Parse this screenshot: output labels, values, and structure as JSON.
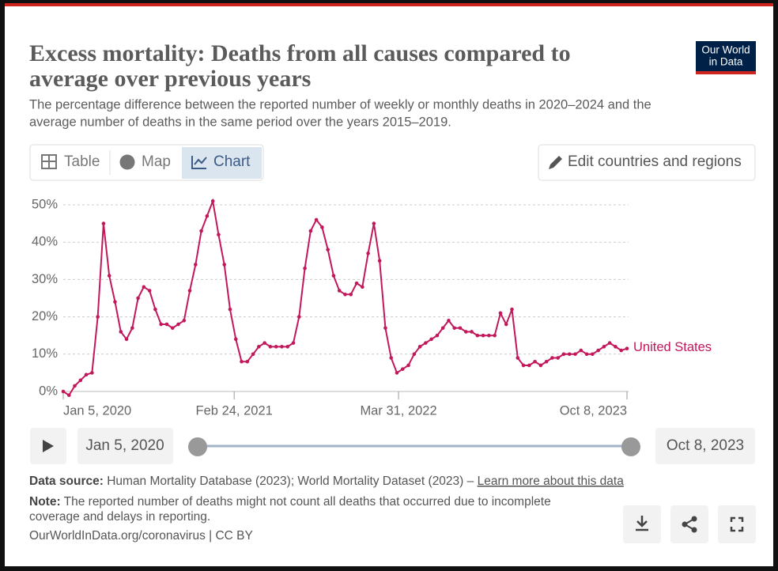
{
  "header": {
    "title_lines": [
      "Excess mortality: Deaths from all causes compared to",
      "average over previous years"
    ],
    "subtitle_lines": [
      "The percentage difference between the reported number of weekly or monthly deaths in 2020–2024 and the",
      "average number of deaths in the same period over the years 2015–2019."
    ]
  },
  "logo": {
    "lines": [
      "Our World",
      "in Data"
    ]
  },
  "tabs": [
    "Table",
    "Map",
    "Chart"
  ],
  "edit_button": "Edit countries and regions",
  "timeline": {
    "start": "Jan 5, 2020",
    "end": "Oct 8, 2023"
  },
  "footer": {
    "source_label": "Data source:",
    "source": " Human Mortality Database (2023); World Mortality Dataset (2023) – ",
    "learn_more": "Learn more about this data",
    "note_label": "Note:",
    "note_lines": [
      " The reported number of deaths might not count all deaths that occurred due to incomplete",
      "coverage and delays in reporting."
    ],
    "url": "OurWorldInData.org/coronavirus | CC BY"
  },
  "chart_data": {
    "type": "line",
    "x": [
      "2020-01-05",
      "2020-01-19",
      "2020-02-02",
      "2020-02-16",
      "2020-03-01",
      "2020-03-15",
      "2020-03-29",
      "2020-04-12",
      "2020-04-26",
      "2020-05-10",
      "2020-05-24",
      "2020-06-07",
      "2020-06-21",
      "2020-07-05",
      "2020-07-19",
      "2020-08-02",
      "2020-08-16",
      "2020-08-30",
      "2020-09-13",
      "2020-09-27",
      "2020-10-11",
      "2020-10-25",
      "2020-11-08",
      "2020-11-22",
      "2020-12-06",
      "2020-12-20",
      "2021-01-03",
      "2021-01-17",
      "2021-01-31",
      "2021-02-14",
      "2021-02-28",
      "2021-03-14",
      "2021-03-28",
      "2021-04-11",
      "2021-04-25",
      "2021-05-09",
      "2021-05-23",
      "2021-06-06",
      "2021-06-20",
      "2021-07-04",
      "2021-07-18",
      "2021-08-01",
      "2021-08-15",
      "2021-08-29",
      "2021-09-12",
      "2021-09-26",
      "2021-10-10",
      "2021-10-24",
      "2021-11-07",
      "2021-11-21",
      "2021-12-05",
      "2021-12-19",
      "2022-01-02",
      "2022-01-16",
      "2022-01-30",
      "2022-02-13",
      "2022-02-27",
      "2022-03-13",
      "2022-03-27",
      "2022-04-10",
      "2022-04-24",
      "2022-05-08",
      "2022-05-22",
      "2022-06-05",
      "2022-06-19",
      "2022-07-03",
      "2022-07-17",
      "2022-07-31",
      "2022-08-14",
      "2022-08-28",
      "2022-09-11",
      "2022-09-25",
      "2022-10-09",
      "2022-10-23",
      "2022-11-06",
      "2022-11-20",
      "2022-12-04",
      "2022-12-18",
      "2023-01-01",
      "2023-01-15",
      "2023-01-29",
      "2023-02-12",
      "2023-02-26",
      "2023-03-12",
      "2023-03-26",
      "2023-04-09",
      "2023-04-23",
      "2023-05-07",
      "2023-05-21",
      "2023-06-04",
      "2023-06-18",
      "2023-07-02",
      "2023-07-16",
      "2023-07-30",
      "2023-08-13",
      "2023-08-27",
      "2023-09-10",
      "2023-09-24",
      "2023-10-08"
    ],
    "series": [
      {
        "name": "United States",
        "color": "#c2185b",
        "values": [
          0,
          -1,
          1.5,
          3,
          4.5,
          5,
          20,
          45,
          31,
          24,
          16,
          14,
          17,
          25,
          28,
          27,
          22,
          18,
          18,
          17,
          18,
          19,
          27,
          34,
          43,
          47,
          51,
          42,
          34,
          22,
          14,
          8,
          8,
          10,
          12,
          13,
          12,
          12,
          12,
          12,
          13,
          20,
          33,
          43,
          46,
          44,
          38,
          31,
          27,
          26,
          26,
          29,
          28,
          37,
          45,
          35,
          17,
          9,
          5,
          6,
          7,
          10,
          12,
          13,
          14,
          15,
          17,
          19,
          17,
          17,
          16,
          16,
          15,
          15,
          15,
          15,
          21,
          18,
          22,
          9,
          7,
          7,
          8,
          7,
          8,
          9,
          9,
          10,
          10,
          10,
          11,
          10,
          10,
          11,
          12,
          13,
          12,
          11,
          11.5
        ]
      }
    ],
    "xlim": [
      "2020-01-05",
      "2023-10-08"
    ],
    "xticks": [
      {
        "value": "2020-01-05",
        "label": "Jan 5, 2020"
      },
      {
        "value": "2021-02-24",
        "label": "Feb 24, 2021"
      },
      {
        "value": "2022-03-31",
        "label": "Mar 31, 2022"
      },
      {
        "value": "2023-10-08",
        "label": "Oct 8, 2023"
      }
    ],
    "ylim": [
      -2,
      50
    ],
    "yticks": [
      {
        "value": 0,
        "label": "0%"
      },
      {
        "value": 10,
        "label": "10%"
      },
      {
        "value": 20,
        "label": "20%"
      },
      {
        "value": 30,
        "label": "30%"
      },
      {
        "value": 40,
        "label": "40%"
      },
      {
        "value": 50,
        "label": "50%"
      }
    ],
    "grid": true
  }
}
